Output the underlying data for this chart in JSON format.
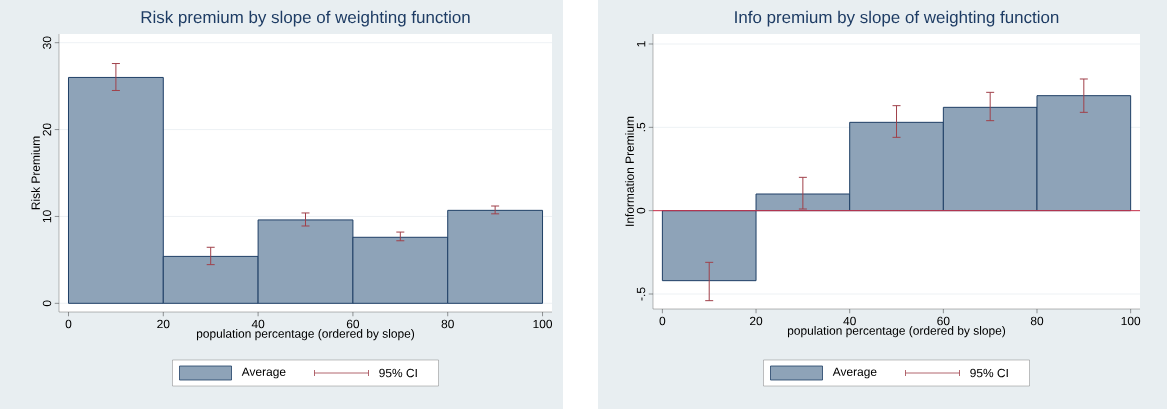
{
  "chart_data": [
    {
      "type": "histogram",
      "title": "Risk premium by slope of weighting function",
      "xlabel": "population percentage (ordered by slope)",
      "ylabel": "Risk Premium",
      "bins": [
        0,
        20,
        40,
        60,
        80,
        100
      ],
      "series": [
        {
          "name": "Average",
          "color": "#8ea3b8",
          "values": [
            26.0,
            5.4,
            9.6,
            7.6,
            10.7
          ],
          "errors": [
            [
              24.5,
              27.6
            ],
            [
              4.45,
              6.45
            ],
            [
              8.9,
              10.4
            ],
            [
              7.2,
              8.2
            ],
            [
              10.3,
              11.2
            ]
          ]
        }
      ],
      "annotations": [
        "95% CI"
      ],
      "xlim": [
        -2,
        102
      ],
      "ylim": [
        -1,
        31
      ],
      "xticks": [
        0,
        20,
        40,
        60,
        80,
        100
      ],
      "yticks": [
        0,
        10,
        20,
        30
      ],
      "grid": "y",
      "legend": "bottom"
    },
    {
      "type": "histogram",
      "title": "Info premium by slope of weighting function",
      "xlabel": "population percentage (ordered by slope)",
      "ylabel": "Information Premium",
      "bins": [
        0,
        20,
        40,
        60,
        80,
        100
      ],
      "series": [
        {
          "name": "Average",
          "color": "#8ea3b8",
          "values": [
            -0.42,
            0.1,
            0.53,
            0.62,
            0.69
          ],
          "errors": [
            [
              -0.54,
              -0.31
            ],
            [
              0.01,
              0.2
            ],
            [
              0.44,
              0.63
            ],
            [
              0.54,
              0.71
            ],
            [
              0.59,
              0.79
            ]
          ]
        }
      ],
      "annotations": [
        "95% CI"
      ],
      "ref_lines": [
        {
          "axis": "y",
          "value": 0,
          "color": "#c8304a"
        }
      ],
      "xlim": [
        -2,
        102
      ],
      "ylim": [
        -0.59,
        1.06
      ],
      "xticks": [
        0,
        20,
        40,
        60,
        80,
        100
      ],
      "yticks": [
        {
          "value": -0.5,
          "label": "-.5"
        },
        0,
        {
          "value": 0.5,
          "label": ".5"
        },
        1
      ],
      "grid": "y",
      "legend": "bottom"
    }
  ]
}
